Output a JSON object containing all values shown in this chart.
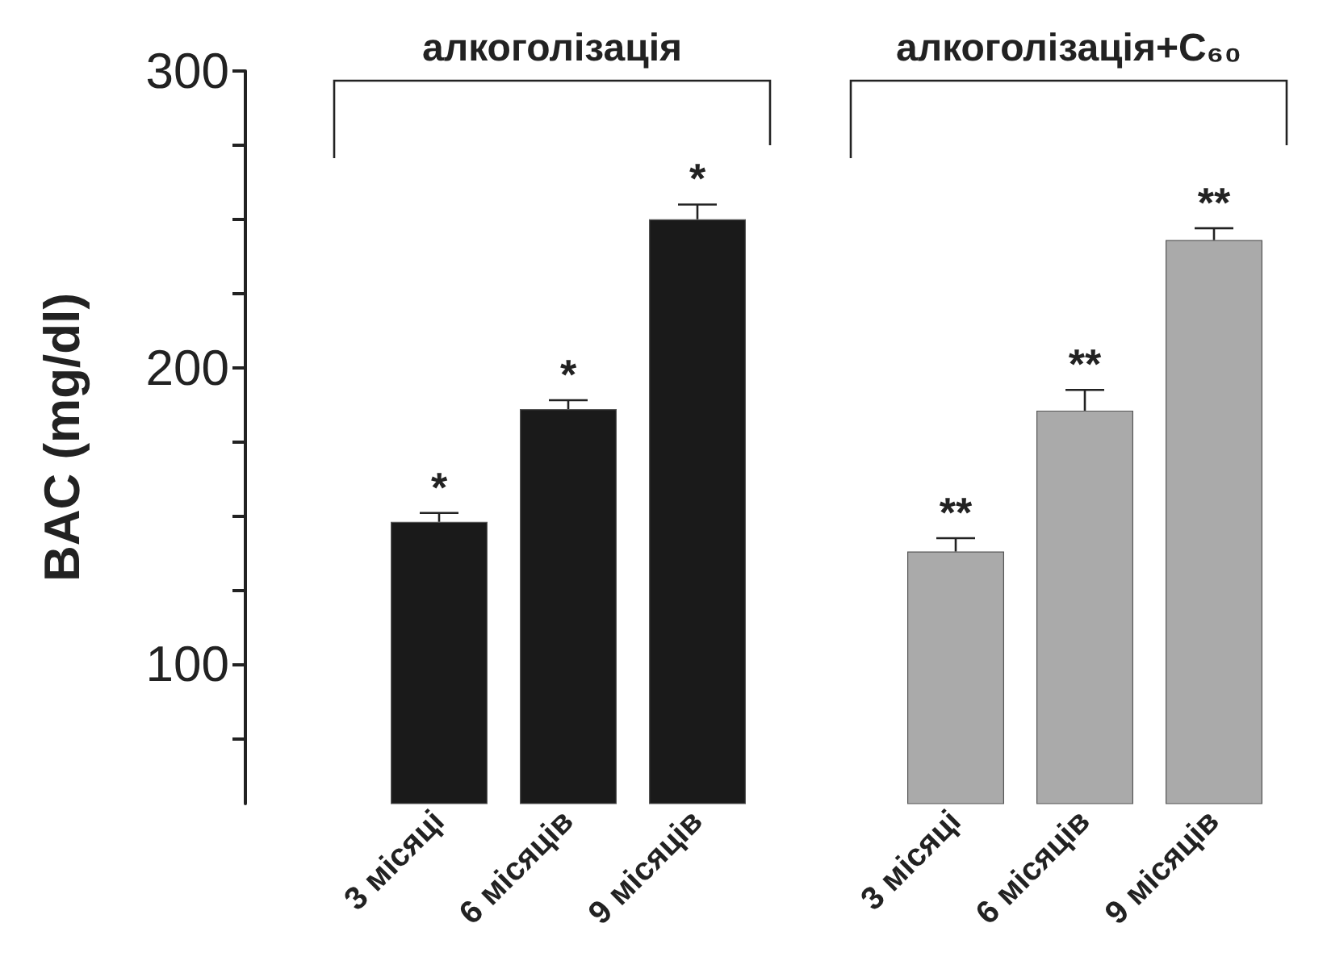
{
  "chart_data": {
    "type": "bar",
    "ylabel": "BAC (mg/dl)",
    "annotations": [
      "алкоголізація",
      "алкоголізація+C₆₀"
    ],
    "categories": [
      null,
      "3 місяці",
      "6 місяців",
      "9 місяців",
      null,
      "3 місяці",
      "6 місяців",
      "9 місяців"
    ],
    "values": [
      null,
      148,
      186,
      250,
      null,
      138,
      185.5,
      243
    ],
    "colors": [
      null,
      "#1a1a1a",
      "#1a1a1a",
      "#1a1a1a",
      null,
      "#aaaaaa",
      "#aaaaaa",
      "#aaaaaa"
    ],
    "errors": [
      null,
      3,
      3,
      5,
      null,
      4.5,
      7,
      4
    ],
    "value_labels": [
      null,
      "*",
      "*",
      "*",
      null,
      "**",
      "**",
      "**"
    ],
    "ylim": [
      53,
      300
    ],
    "yticks": [
      {
        "value": 75,
        "label": null
      },
      100,
      {
        "value": 125,
        "label": null
      },
      {
        "value": 150,
        "label": null
      },
      {
        "value": 175,
        "label": null
      },
      200,
      {
        "value": 225,
        "label": null
      },
      {
        "value": 250,
        "label": null
      },
      {
        "value": 275,
        "label": null
      },
      300
    ],
    "grid": false
  }
}
